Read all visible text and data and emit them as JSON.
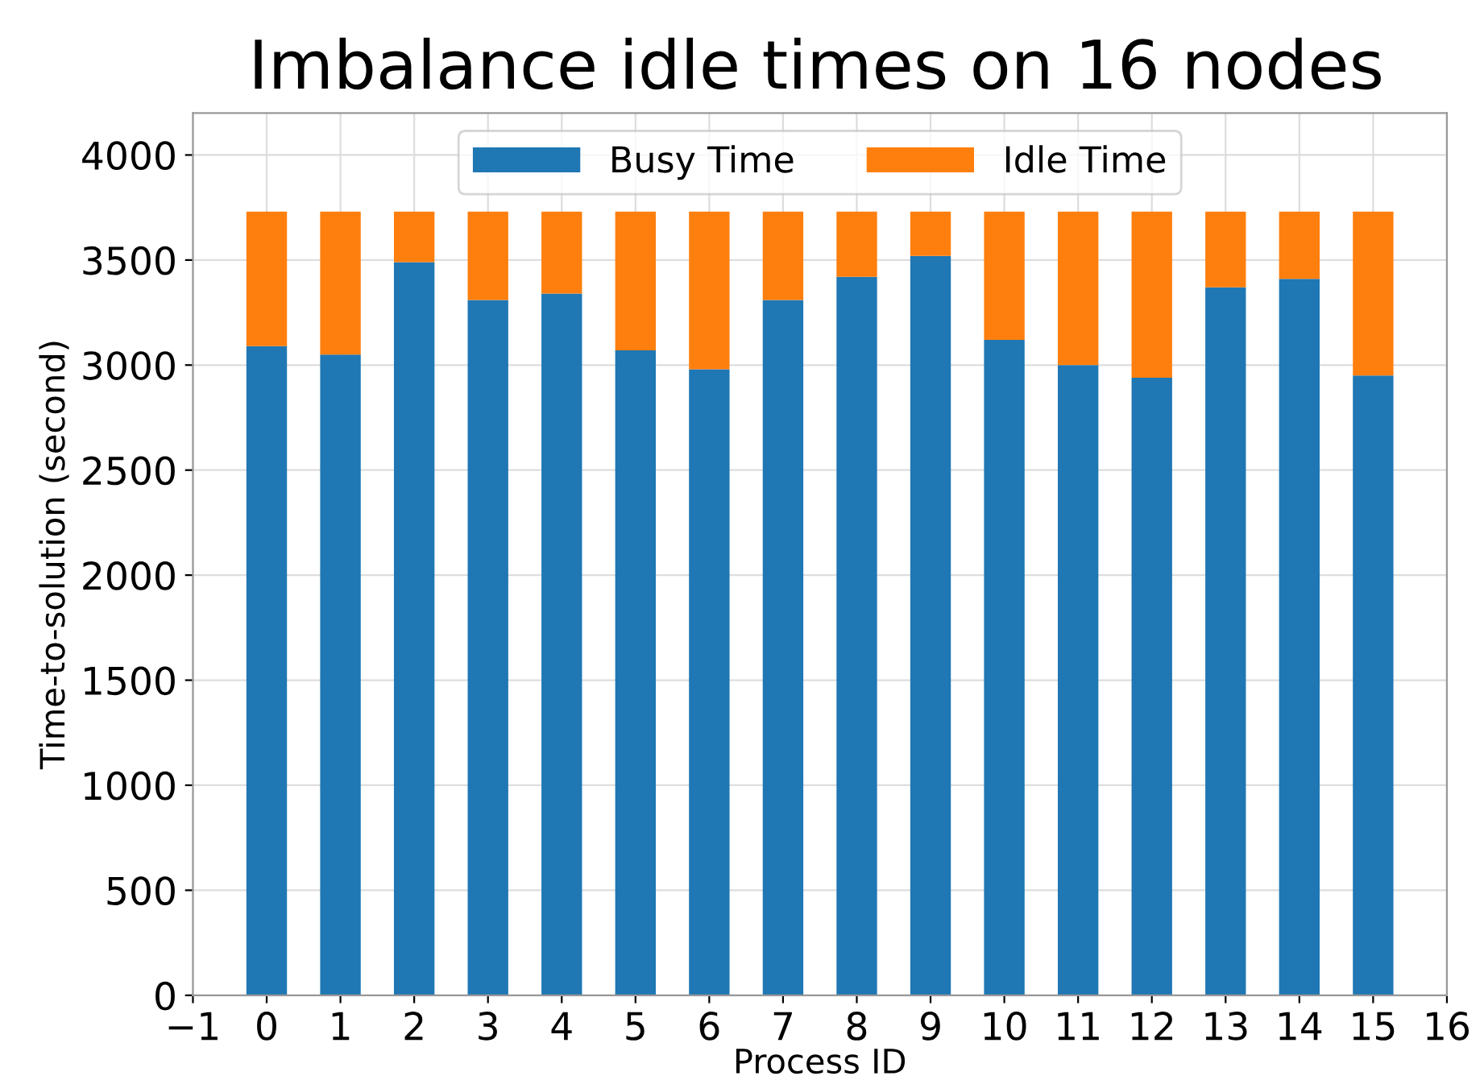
{
  "chart_data": {
    "type": "bar",
    "stacked": true,
    "title": "Imbalance idle times on 16 nodes",
    "xlabel": "Process ID",
    "ylabel": "Time-to-solution (second)",
    "x": [
      0,
      1,
      2,
      3,
      4,
      5,
      6,
      7,
      8,
      9,
      10,
      11,
      12,
      13,
      14,
      15
    ],
    "series": [
      {
        "name": "Busy Time",
        "color": "#1f77b4",
        "values": [
          3090,
          3050,
          3490,
          3310,
          3340,
          3070,
          2980,
          3310,
          3420,
          3520,
          3120,
          3000,
          2940,
          3370,
          3410,
          2950
        ]
      },
      {
        "name": "Idle Time",
        "color": "#ff7f0e",
        "values": [
          640,
          680,
          240,
          420,
          390,
          660,
          750,
          420,
          310,
          210,
          610,
          730,
          790,
          360,
          320,
          780
        ]
      }
    ],
    "xlim": [
      -1,
      16
    ],
    "xticks": [
      {
        "value": -1,
        "label": "−1"
      },
      0,
      1,
      2,
      3,
      4,
      5,
      6,
      7,
      8,
      9,
      10,
      11,
      12,
      13,
      14,
      15,
      16
    ],
    "ylim": [
      0,
      4200
    ],
    "yticks": [
      0,
      500,
      1000,
      1500,
      2000,
      2500,
      3000,
      3500,
      4000
    ],
    "grid": true,
    "legend": "top"
  }
}
